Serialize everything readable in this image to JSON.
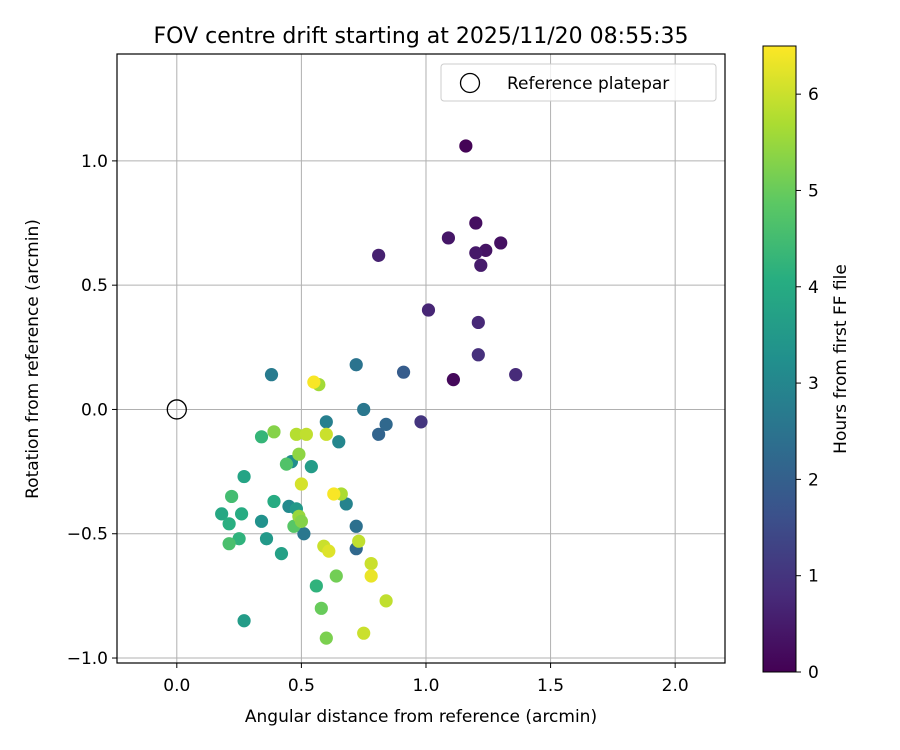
{
  "chart_data": {
    "type": "scatter",
    "title": "FOV centre drift starting at 2025/11/20 08:55:35",
    "xlabel": "Angular distance from reference (arcmin)",
    "ylabel": "Rotation from reference (arcmin)",
    "xlim": [
      -0.24,
      2.2
    ],
    "ylim": [
      -1.02,
      1.43
    ],
    "xticks": [
      0.0,
      0.5,
      1.0,
      1.5,
      2.0
    ],
    "xtick_labels": [
      "0.0",
      "0.5",
      "1.0",
      "1.5",
      "2.0"
    ],
    "yticks": [
      -1.0,
      -0.5,
      0.0,
      0.5,
      1.0
    ],
    "ytick_labels": [
      "−1.0",
      "−0.5",
      "0.0",
      "0.5",
      "1.0"
    ],
    "grid": true,
    "legend": {
      "position": "top-right",
      "entries": [
        "Reference platepar"
      ]
    },
    "reference_point": {
      "x": 0.0,
      "y": 0.0,
      "label": "Reference platepar"
    },
    "colorbar": {
      "label": "Hours from first FF file",
      "min": 0,
      "max": 6.5,
      "ticks": [
        0,
        1,
        2,
        3,
        4,
        5,
        6
      ],
      "tick_labels": [
        "0",
        "1",
        "2",
        "3",
        "4",
        "5",
        "6"
      ],
      "colormap": "viridis"
    },
    "points": [
      {
        "x": 1.16,
        "y": 1.06,
        "c": 0.05
      },
      {
        "x": 1.2,
        "y": 0.75,
        "c": 0.25
      },
      {
        "x": 1.09,
        "y": 0.69,
        "c": 0.4
      },
      {
        "x": 1.3,
        "y": 0.67,
        "c": 0.3
      },
      {
        "x": 1.24,
        "y": 0.64,
        "c": 0.35
      },
      {
        "x": 1.2,
        "y": 0.63,
        "c": 0.45
      },
      {
        "x": 1.22,
        "y": 0.58,
        "c": 0.5
      },
      {
        "x": 0.81,
        "y": 0.62,
        "c": 0.6
      },
      {
        "x": 1.01,
        "y": 0.4,
        "c": 0.7
      },
      {
        "x": 1.21,
        "y": 0.35,
        "c": 0.75
      },
      {
        "x": 1.21,
        "y": 0.22,
        "c": 0.9
      },
      {
        "x": 1.36,
        "y": 0.14,
        "c": 0.8
      },
      {
        "x": 1.11,
        "y": 0.12,
        "c": 0.15
      },
      {
        "x": 0.98,
        "y": -0.05,
        "c": 1.0
      },
      {
        "x": 0.91,
        "y": 0.15,
        "c": 1.9
      },
      {
        "x": 0.81,
        "y": -0.1,
        "c": 2.1
      },
      {
        "x": 0.84,
        "y": -0.06,
        "c": 2.2
      },
      {
        "x": 0.75,
        "y": 0.0,
        "c": 2.6
      },
      {
        "x": 0.72,
        "y": 0.18,
        "c": 2.5
      },
      {
        "x": 0.6,
        "y": -0.05,
        "c": 2.8
      },
      {
        "x": 0.65,
        "y": -0.13,
        "c": 3.0
      },
      {
        "x": 0.38,
        "y": 0.14,
        "c": 2.7
      },
      {
        "x": 0.68,
        "y": -0.38,
        "c": 2.9
      },
      {
        "x": 0.72,
        "y": -0.47,
        "c": 2.4
      },
      {
        "x": 0.72,
        "y": -0.56,
        "c": 2.2
      },
      {
        "x": 0.51,
        "y": -0.5,
        "c": 2.6
      },
      {
        "x": 0.45,
        "y": -0.39,
        "c": 3.1
      },
      {
        "x": 0.48,
        "y": -0.4,
        "c": 3.5
      },
      {
        "x": 0.46,
        "y": -0.21,
        "c": 3.2
      },
      {
        "x": 0.54,
        "y": -0.23,
        "c": 3.6
      },
      {
        "x": 0.42,
        "y": -0.58,
        "c": 3.7
      },
      {
        "x": 0.34,
        "y": -0.45,
        "c": 3.3
      },
      {
        "x": 0.36,
        "y": -0.52,
        "c": 3.5
      },
      {
        "x": 0.27,
        "y": -0.27,
        "c": 3.8
      },
      {
        "x": 0.27,
        "y": -0.85,
        "c": 3.6
      },
      {
        "x": 0.39,
        "y": -0.37,
        "c": 4.0
      },
      {
        "x": 0.18,
        "y": -0.42,
        "c": 3.9
      },
      {
        "x": 0.21,
        "y": -0.46,
        "c": 4.1
      },
      {
        "x": 0.26,
        "y": -0.42,
        "c": 4.0
      },
      {
        "x": 0.25,
        "y": -0.52,
        "c": 4.2
      },
      {
        "x": 0.21,
        "y": -0.54,
        "c": 4.6
      },
      {
        "x": 0.22,
        "y": -0.35,
        "c": 4.5
      },
      {
        "x": 0.34,
        "y": -0.11,
        "c": 4.3
      },
      {
        "x": 0.44,
        "y": -0.22,
        "c": 4.7
      },
      {
        "x": 0.47,
        "y": -0.47,
        "c": 4.8
      },
      {
        "x": 0.56,
        "y": -0.71,
        "c": 4.2
      },
      {
        "x": 0.58,
        "y": -0.8,
        "c": 5.0
      },
      {
        "x": 0.64,
        "y": -0.67,
        "c": 5.1
      },
      {
        "x": 0.6,
        "y": -0.92,
        "c": 5.2
      },
      {
        "x": 0.39,
        "y": -0.09,
        "c": 5.3
      },
      {
        "x": 0.49,
        "y": -0.18,
        "c": 5.4
      },
      {
        "x": 0.49,
        "y": -0.43,
        "c": 5.5
      },
      {
        "x": 0.5,
        "y": -0.45,
        "c": 5.3
      },
      {
        "x": 0.57,
        "y": 0.1,
        "c": 5.6
      },
      {
        "x": 0.48,
        "y": -0.1,
        "c": 5.8
      },
      {
        "x": 0.52,
        "y": -0.1,
        "c": 5.9
      },
      {
        "x": 0.6,
        "y": -0.1,
        "c": 6.0
      },
      {
        "x": 0.5,
        "y": -0.3,
        "c": 6.1
      },
      {
        "x": 0.66,
        "y": -0.34,
        "c": 5.7
      },
      {
        "x": 0.59,
        "y": -0.55,
        "c": 6.0
      },
      {
        "x": 0.61,
        "y": -0.57,
        "c": 6.2
      },
      {
        "x": 0.73,
        "y": -0.53,
        "c": 5.9
      },
      {
        "x": 0.78,
        "y": -0.62,
        "c": 6.0
      },
      {
        "x": 0.78,
        "y": -0.67,
        "c": 6.3
      },
      {
        "x": 0.84,
        "y": -0.77,
        "c": 5.9
      },
      {
        "x": 0.75,
        "y": -0.9,
        "c": 6.0
      },
      {
        "x": 0.55,
        "y": 0.11,
        "c": 6.45
      },
      {
        "x": 0.63,
        "y": -0.34,
        "c": 6.45
      }
    ]
  }
}
